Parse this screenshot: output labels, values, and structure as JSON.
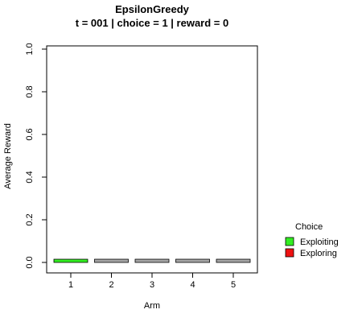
{
  "chart_data": {
    "type": "bar",
    "title": "EpsilonGreedy",
    "subtitle": "t = 001 | choice = 1 | reward = 0",
    "xlabel": "Arm",
    "ylabel": "Average Reward",
    "categories": [
      "1",
      "2",
      "3",
      "4",
      "5"
    ],
    "values": [
      0.015,
      0.015,
      0.015,
      0.015,
      0.015
    ],
    "bar_status": [
      "Exploiting",
      "Other",
      "Other",
      "Other",
      "Other"
    ],
    "ylim": [
      0,
      1
    ],
    "yticks": [
      0.0,
      0.2,
      0.4,
      0.6,
      0.8,
      1.0
    ],
    "ytick_labels": [
      "0.0",
      "0.2",
      "0.4",
      "0.6",
      "0.8",
      "1.0"
    ],
    "grid": false,
    "legend": {
      "title": "Choice",
      "position": "right",
      "entries": [
        {
          "label": "Exploiting",
          "color": "#33ee22"
        },
        {
          "label": "Exploring",
          "color": "#ee1111"
        }
      ]
    },
    "colors": {
      "Exploiting": "#33ee22",
      "Exploring": "#ee1111",
      "Other": "#a6a6a6"
    }
  }
}
